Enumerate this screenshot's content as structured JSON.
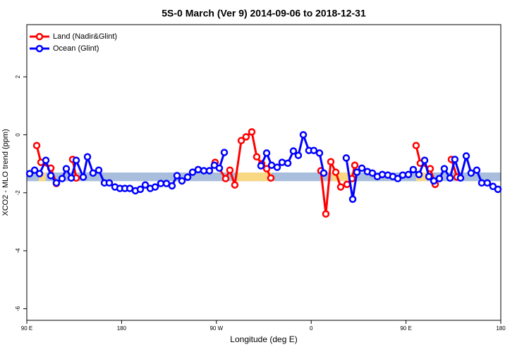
{
  "chart_data": {
    "type": "line",
    "title": "5S-0 March (Ver 9)   2014-09-06 to 2018-12-31",
    "x_label": "Longitude (deg E)",
    "y_label": "XCO2 - MLO trend (ppm)",
    "xlim": [
      90,
      540
    ],
    "xticks": [
      {
        "value": 90,
        "label": "90 E"
      },
      180,
      {
        "value": 270,
        "label": "90 W"
      },
      {
        "value": 360,
        "label": "0"
      },
      {
        "value": 450,
        "label": "90 E"
      },
      {
        "value": 540,
        "label": "180"
      }
    ],
    "ylim": [
      -6.4,
      3.8
    ],
    "yticks": [
      -6,
      -4,
      -2,
      0,
      2
    ],
    "legend": "top-left",
    "band": {
      "ylim": [
        -1.6,
        -1.3
      ],
      "color": "#a8bedc",
      "highlight_color": "#f9d884",
      "highlights": [
        [
          101.4,
          108.1
        ],
        [
          288.9,
          322.4
        ],
        [
          379.3,
          399.4
        ],
        [
          459.6,
          469.7
        ]
      ]
    },
    "series": [
      {
        "name": "Land (Nadir&Glint)",
        "color": "#ff0000",
        "x": [
          99.4,
          103.4,
          112.8,
          118.1,
          124.8,
          133.5,
          136.9,
          198.5,
          268.8,
          278.8,
          282.8,
          287.5,
          293.6,
          298.2,
          303.6,
          308.3,
          313.0,
          317.7,
          321.7,
          345.8,
          369.2,
          373.9,
          378.6,
          383.3,
          388.0,
          394.0,
          398.7,
          401.4,
          432.8,
          459.6,
          463.6,
          473.0,
          477.7,
          486.4,
          493.1,
          498.5
        ],
        "values": [
          -0.37,
          -0.95,
          -1.15,
          -1.68,
          null,
          -0.85,
          -1.49,
          null,
          -0.95,
          -1.51,
          -1.22,
          -1.73,
          -0.2,
          -0.07,
          0.1,
          -0.76,
          -1.0,
          -1.17,
          -1.49,
          null,
          -1.24,
          -2.73,
          -0.93,
          -1.29,
          -1.8,
          -1.71,
          -1.51,
          -1.05,
          null,
          -0.37,
          -0.98,
          -1.17,
          -1.71,
          null,
          -0.85,
          -1.46
        ]
      },
      {
        "name": "Ocean (Glint)",
        "color": "#0000ff",
        "x": [
          92.7,
          97.4,
          102.1,
          108.1,
          112.8,
          118.1,
          123.5,
          127.5,
          132.2,
          136.9,
          143.6,
          147.6,
          152.9,
          158.3,
          163.7,
          168.3,
          173.7,
          178.4,
          183.1,
          187.8,
          193.1,
          197.8,
          202.5,
          207.2,
          211.9,
          217.2,
          222.6,
          227.9,
          232.6,
          237.3,
          242.7,
          247.4,
          252.7,
          258.1,
          263.4,
          268.1,
          272.8,
          277.5,
          295.6,
          312.3,
          317.7,
          322.4,
          327.7,
          332.4,
          337.8,
          343.1,
          347.8,
          352.5,
          357.8,
          362.5,
          367.9,
          371.9,
          382.6,
          393.3,
          399.4,
          403.4,
          408.1,
          413.4,
          418.1,
          422.8,
          427.5,
          432.8,
          437.5,
          442.2,
          446.9,
          452.3,
          456.9,
          462.3,
          467.7,
          471.7,
          476.4,
          481.7,
          486.4,
          491.8,
          496.4,
          501.8,
          507.2,
          511.8,
          517.2,
          521.9,
          527.2,
          532.6,
          537.3
        ],
        "values": [
          -1.34,
          -1.22,
          -1.34,
          -0.88,
          -1.41,
          -1.66,
          -1.51,
          -1.17,
          -1.49,
          -0.88,
          -1.46,
          -0.76,
          -1.32,
          -1.22,
          -1.66,
          -1.66,
          -1.8,
          -1.85,
          -1.85,
          -1.85,
          -1.93,
          -1.88,
          -1.73,
          -1.85,
          -1.8,
          -1.68,
          -1.68,
          -1.76,
          -1.41,
          -1.59,
          -1.46,
          -1.29,
          -1.2,
          -1.24,
          -1.24,
          -1.05,
          -1.15,
          -0.61,
          null,
          -1.07,
          -0.63,
          -1.05,
          -1.12,
          -0.95,
          -0.98,
          -0.56,
          -0.71,
          0.0,
          -0.54,
          -0.54,
          -0.63,
          -1.32,
          null,
          -0.8,
          -2.22,
          -1.29,
          -1.15,
          -1.27,
          -1.32,
          -1.44,
          -1.37,
          -1.39,
          -1.44,
          -1.51,
          -1.39,
          -1.37,
          -1.2,
          -1.37,
          -0.88,
          -1.44,
          -1.59,
          -1.51,
          -1.17,
          -1.49,
          -0.85,
          -1.49,
          -0.73,
          -1.32,
          -1.22,
          -1.66,
          -1.66,
          -1.78,
          -1.88
        ]
      }
    ]
  }
}
